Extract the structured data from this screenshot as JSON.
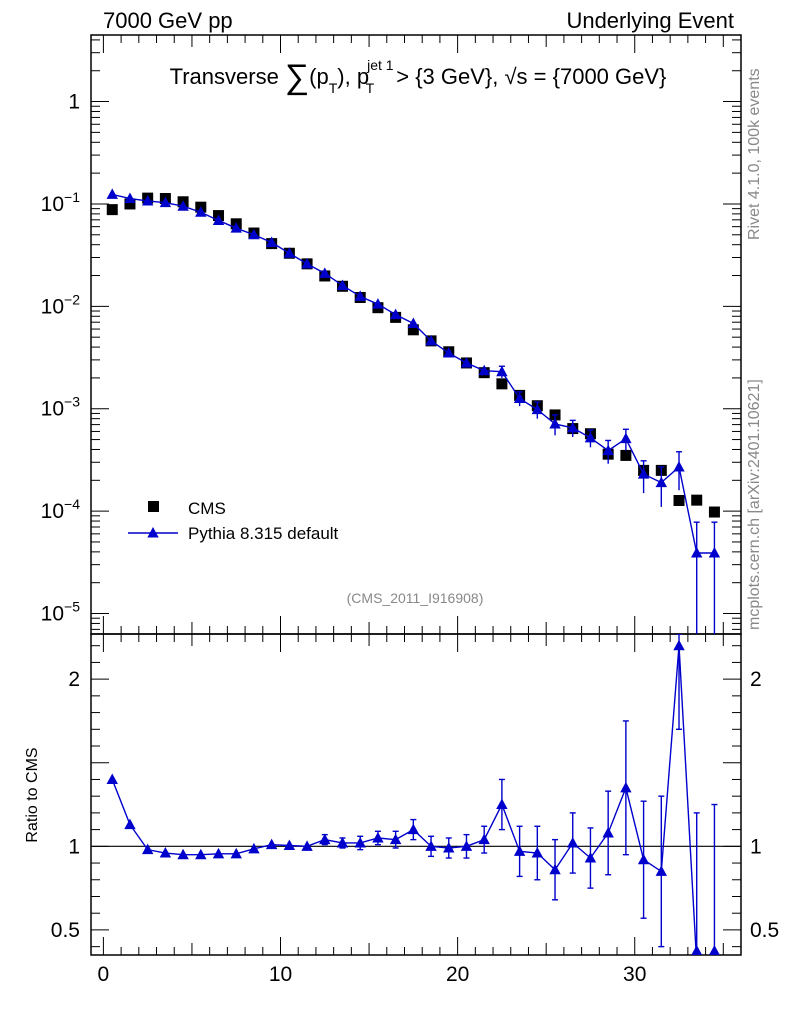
{
  "header": {
    "left": "7000 GeV pp",
    "right": "Underlying Event"
  },
  "side": {
    "rivet": "Rivet 4.1.0,  100k events",
    "mcplots": "mcplots.cern.ch [arXiv:2401.10621]"
  },
  "colors": {
    "mc": "#0000cc",
    "data": "#000000",
    "ref": "#888888"
  },
  "chart_data": {
    "type": "scatter",
    "title_parts": {
      "pre": "Transverse ",
      "sym": "∑",
      "p": "(p",
      "sub_t": "T",
      "post": "), p",
      "sup_jet": "jet 1",
      "sub_t2": "T",
      "cond": " > {3 GeV}, √s = {7000 GeV}"
    },
    "ref_label": "(CMS_2011_I916908)",
    "xlim": [
      -0.7,
      36
    ],
    "xticks": [
      0,
      10,
      20,
      30
    ],
    "top": {
      "ylim_log10": [
        -5.2,
        0.65
      ],
      "yticks": [
        {
          "v": 0,
          "base": "1",
          "exp": ""
        },
        {
          "v": -1,
          "base": "10",
          "exp": "−1"
        },
        {
          "v": -2,
          "base": "10",
          "exp": "−2"
        },
        {
          "v": -3,
          "base": "10",
          "exp": "−3"
        },
        {
          "v": -4,
          "base": "10",
          "exp": "−4"
        },
        {
          "v": -5,
          "base": "10",
          "exp": "−5"
        }
      ]
    },
    "bottom": {
      "ylabel": "Ratio to CMS",
      "ylim": [
        0.35,
        2.27
      ],
      "yticks": [
        0.5,
        1,
        2
      ],
      "ytick_labels": [
        "0.5",
        "1",
        "2"
      ]
    },
    "legend": {
      "data": "CMS",
      "mc": "Pythia 8.315 default"
    },
    "x": [
      0.5,
      1.5,
      2.5,
      3.5,
      4.5,
      5.5,
      6.5,
      7.5,
      8.5,
      9.5,
      10.5,
      11.5,
      12.5,
      13.5,
      14.5,
      15.5,
      16.5,
      17.5,
      18.5,
      19.5,
      20.5,
      21.5,
      22.5,
      23.5,
      24.5,
      25.5,
      26.5,
      27.5,
      28.5,
      29.5,
      30.5,
      31.5,
      32.5,
      33.5,
      34.5
    ],
    "data_values": [
      0.088,
      0.1,
      0.114,
      0.113,
      0.105,
      0.093,
      0.077,
      0.064,
      0.052,
      0.041,
      0.033,
      0.026,
      0.0198,
      0.0157,
      0.0122,
      0.0097,
      0.0078,
      0.0059,
      0.0046,
      0.0036,
      0.0028,
      0.00225,
      0.00175,
      0.00135,
      0.00107,
      0.00087,
      0.00064,
      0.00057,
      0.00036,
      0.00035,
      0.00025,
      0.00025,
      0.000127,
      0.000128,
      9.8e-05
    ],
    "mc_values": [
      0.124,
      0.113,
      0.107,
      0.103,
      0.095,
      0.083,
      0.069,
      0.058,
      0.05,
      0.042,
      0.033,
      0.026,
      0.021,
      0.016,
      0.0125,
      0.0105,
      0.0083,
      0.0068,
      0.0046,
      0.0035,
      0.0028,
      0.00235,
      0.0023,
      0.00126,
      0.00098,
      0.00071,
      0.00065,
      0.00052,
      0.00039,
      0.00051,
      0.00023,
      0.00019,
      0.00027,
      3.9e-05,
      3.9e-05
    ],
    "mc_errors": [
      0.002,
      0.002,
      0.002,
      0.002,
      0.002,
      0.002,
      0.0015,
      0.0012,
      0.001,
      0.0008,
      0.0007,
      0.0006,
      0.0005,
      0.0004,
      0.0003,
      0.0003,
      0.0003,
      0.0003,
      0.0002,
      0.0002,
      0.0002,
      0.0002,
      0.0003,
      0.0002,
      0.00018,
      0.00016,
      0.00012,
      0.0001,
      0.0001,
      0.00012,
      8e-05,
      8e-05,
      0.00011,
      3.9e-05,
      3.9e-05
    ],
    "ratio_values": [
      1.4,
      1.13,
      0.98,
      0.96,
      0.95,
      0.95,
      0.955,
      0.955,
      0.985,
      1.01,
      1.005,
      1.0,
      1.04,
      1.02,
      1.02,
      1.05,
      1.04,
      1.1,
      1.0,
      0.99,
      1.0,
      1.04,
      1.25,
      0.97,
      0.96,
      0.86,
      1.02,
      0.93,
      1.08,
      1.35,
      0.92,
      0.85,
      2.2,
      0.3,
      0.35
    ],
    "ratio_errors": [
      0.02,
      0.02,
      0.01,
      0.01,
      0.01,
      0.01,
      0.01,
      0.01,
      0.015,
      0.02,
      0.02,
      0.02,
      0.03,
      0.03,
      0.04,
      0.04,
      0.05,
      0.06,
      0.06,
      0.06,
      0.07,
      0.08,
      0.15,
      0.15,
      0.16,
      0.18,
      0.18,
      0.18,
      0.25,
      0.4,
      0.35,
      0.45,
      0.5,
      0.9,
      0.9
    ]
  }
}
